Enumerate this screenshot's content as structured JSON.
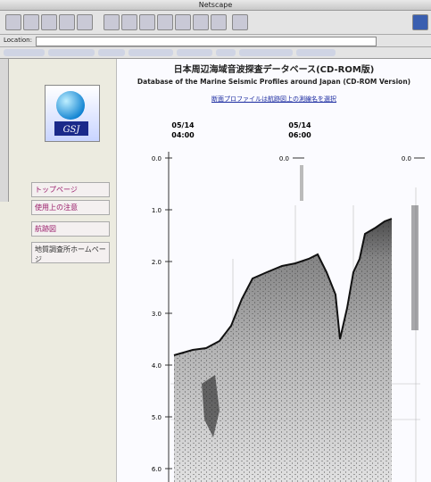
{
  "window": {
    "title": "Netscape"
  },
  "location": {
    "label": "Location:"
  },
  "page": {
    "title_ja": "日本周辺海域音波探査データベース(CD-ROM版)",
    "title_en": "Database of the Marine Seismic Profiles around Japan (CD-ROM Version)",
    "note": "断面プロファイルは航跡図上の測線名を選択"
  },
  "sidebar": {
    "logo": "GSJ",
    "links": [
      "トップページ",
      "使用上の注意",
      "航跡図",
      "地質調査所ホームページ"
    ]
  },
  "profile": {
    "times": [
      {
        "date": "05/14",
        "time": "04:00"
      },
      {
        "date": "05/14",
        "time": "06:00"
      }
    ],
    "depth_ticks": [
      "0.0",
      "1.0",
      "2.0",
      "3.0",
      "4.0",
      "5.0",
      "6.0"
    ],
    "mid_axis_label": "0.0",
    "right_axis_label": "0.0"
  }
}
